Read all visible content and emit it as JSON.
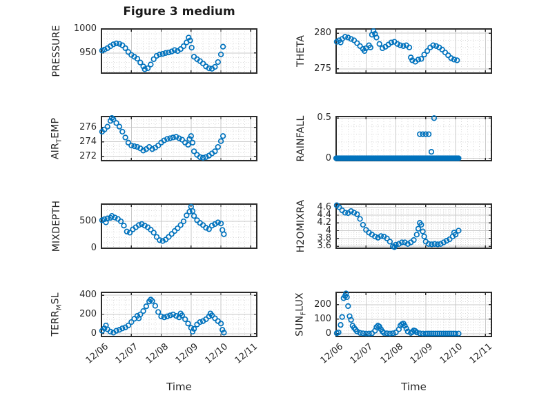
{
  "figure": {
    "title": "Figure 3 medium",
    "xlabel": "Time",
    "background": "#ffffff",
    "marker_color": "#0072BD",
    "axes_color": "#2b2b2b",
    "grid_major_color": "#c9c9c9",
    "grid_minor_color": "#d8d8d8",
    "text_color": "#262626",
    "x_ticks": {
      "values": [
        0,
        1,
        2,
        3,
        4,
        5
      ],
      "labels": [
        "12/06",
        "12/07",
        "12/08",
        "12/09",
        "12/10",
        "12/11"
      ]
    },
    "xlim_days": [
      0,
      5.2
    ],
    "x_minor_step_days": 0.2,
    "marker_render_step_days": 0.07
  },
  "chart_data": [
    {
      "name": "PRESSURE",
      "type": "scatter",
      "ylabel": {
        "pre": "PRESSURE",
        "sub": "",
        "post": ""
      },
      "ylabel_text": "PRESSURE",
      "yticks": [
        950,
        1000
      ],
      "ytick_labels": [
        "950",
        "1000"
      ],
      "ylim": [
        908,
        1000
      ],
      "y_minor_step": 10,
      "x": [
        0.02,
        0.1,
        0.2,
        0.3,
        0.4,
        0.5,
        0.6,
        0.7,
        0.8,
        0.9,
        1.0,
        1.1,
        1.2,
        1.3,
        1.4,
        1.45,
        1.55,
        1.65,
        1.75,
        1.85,
        1.95,
        2.05,
        2.15,
        2.25,
        2.35,
        2.45,
        2.55,
        2.65,
        2.75,
        2.85,
        2.92,
        2.97,
        3.02,
        3.1,
        3.2,
        3.3,
        3.4,
        3.5,
        3.6,
        3.7,
        3.8,
        3.9,
        4.0,
        4.07
      ],
      "y": [
        955,
        957,
        960,
        964,
        968,
        970,
        969,
        966,
        960,
        952,
        946,
        942,
        938,
        930,
        922,
        916,
        918,
        926,
        937,
        944,
        947,
        948,
        950,
        951,
        953,
        956,
        954,
        958,
        964,
        972,
        982,
        976,
        961,
        942,
        937,
        933,
        928,
        922,
        918,
        917,
        921,
        931,
        947,
        963
      ]
    },
    {
      "name": "THETA",
      "type": "scatter",
      "ylabel": {
        "pre": "THETA",
        "sub": "",
        "post": ""
      },
      "ylabel_text": "THETA",
      "yticks": [
        275,
        280
      ],
      "ytick_labels": [
        "275",
        "280"
      ],
      "ylim": [
        274.4,
        280.6
      ],
      "y_minor_step": 1,
      "x": [
        0.02,
        0.1,
        0.15,
        0.2,
        0.3,
        0.4,
        0.5,
        0.6,
        0.7,
        0.8,
        0.9,
        0.95,
        1.0,
        1.1,
        1.15,
        1.2,
        1.25,
        1.3,
        1.35,
        1.45,
        1.55,
        1.65,
        1.75,
        1.85,
        1.95,
        2.05,
        2.15,
        2.25,
        2.35,
        2.45,
        2.5,
        2.55,
        2.65,
        2.75,
        2.85,
        2.95,
        3.05,
        3.15,
        3.25,
        3.35,
        3.45,
        3.55,
        3.65,
        3.75,
        3.85,
        3.95,
        4.05
      ],
      "y": [
        278.8,
        279.0,
        278.7,
        279.2,
        279.5,
        279.4,
        279.2,
        279.0,
        278.6,
        278.2,
        277.8,
        277.5,
        277.9,
        278.3,
        278.0,
        279.8,
        280.3,
        279.9,
        279.4,
        278.5,
        277.9,
        278.1,
        278.4,
        278.7,
        278.8,
        278.5,
        278.3,
        278.2,
        278.3,
        278.0,
        276.6,
        276.2,
        276.0,
        276.3,
        276.4,
        277.0,
        277.5,
        278.0,
        278.3,
        278.2,
        278.0,
        277.7,
        277.3,
        276.9,
        276.5,
        276.3,
        276.2
      ]
    },
    {
      "name": "AIR_TEMP",
      "type": "scatter",
      "ylabel": {
        "pre": "AIR",
        "sub": "T",
        "post": "EMP"
      },
      "ylabel_text": "AIR_TEMP",
      "yticks": [
        272,
        274,
        276
      ],
      "ytick_labels": [
        "272",
        "274",
        "276"
      ],
      "ylim": [
        271.4,
        277.5
      ],
      "y_minor_step": 0.5,
      "x": [
        0.02,
        0.1,
        0.2,
        0.3,
        0.35,
        0.4,
        0.5,
        0.6,
        0.7,
        0.8,
        0.9,
        1.0,
        1.1,
        1.2,
        1.3,
        1.4,
        1.5,
        1.6,
        1.7,
        1.8,
        1.9,
        2.0,
        2.1,
        2.2,
        2.3,
        2.4,
        2.5,
        2.6,
        2.7,
        2.8,
        2.9,
        2.95,
        3.0,
        3.05,
        3.1,
        3.2,
        3.3,
        3.4,
        3.5,
        3.6,
        3.7,
        3.8,
        3.9,
        4.0,
        4.07
      ],
      "y": [
        275.4,
        275.7,
        276.1,
        276.9,
        277.3,
        277.1,
        276.6,
        276.1,
        275.4,
        274.6,
        273.9,
        273.5,
        273.4,
        273.3,
        273.1,
        272.8,
        273.0,
        273.3,
        273.0,
        273.2,
        273.5,
        273.9,
        274.2,
        274.4,
        274.5,
        274.6,
        274.7,
        274.5,
        274.3,
        273.9,
        273.6,
        274.4,
        274.8,
        273.9,
        272.7,
        272.2,
        271.9,
        271.8,
        271.9,
        272.1,
        272.4,
        272.7,
        273.3,
        274.1,
        274.8
      ]
    },
    {
      "name": "RAINFALL",
      "type": "scatter",
      "ylabel": {
        "pre": "RAINFALL",
        "sub": "",
        "post": ""
      },
      "ylabel_text": "RAINFALL",
      "yticks": [
        0,
        0.5
      ],
      "ytick_labels": [
        "0",
        "0.5"
      ],
      "ylim": [
        -0.03,
        0.52
      ],
      "y_minor_step": 0.1,
      "render_step_days": 0.03,
      "x": [
        0,
        0.1,
        0.2,
        0.3,
        0.4,
        0.5,
        0.6,
        0.7,
        0.8,
        0.9,
        1.0,
        1.1,
        1.2,
        1.3,
        1.4,
        1.5,
        1.6,
        1.7,
        1.8,
        1.9,
        2.0,
        2.1,
        2.2,
        2.3,
        2.4,
        2.5,
        2.6,
        2.7,
        2.8,
        2.9,
        3.0,
        3.1,
        3.2,
        3.3,
        3.4,
        3.5,
        3.6,
        3.7,
        3.8,
        3.9,
        4.0,
        4.1
      ],
      "y": [
        0,
        0,
        0,
        0,
        0,
        0,
        0,
        0,
        0,
        0,
        0,
        0,
        0,
        0,
        0,
        0,
        0,
        0,
        0,
        0,
        0,
        0,
        0,
        0,
        0,
        0,
        0,
        0,
        0,
        0,
        0,
        0,
        0,
        0,
        0,
        0,
        0,
        0,
        0,
        0,
        0,
        0
      ],
      "events": {
        "x": [
          2.8,
          2.9,
          3.0,
          3.1,
          3.19,
          3.28
        ],
        "y": [
          0.3,
          0.3,
          0.3,
          0.3,
          0.08,
          0.5
        ]
      }
    },
    {
      "name": "MIXDEPTH",
      "type": "scatter",
      "ylabel": {
        "pre": "MIXDEPTH",
        "sub": "",
        "post": ""
      },
      "ylabel_text": "MIXDEPTH",
      "yticks": [
        0,
        500
      ],
      "ytick_labels": [
        "0",
        "500"
      ],
      "ylim": [
        0,
        820
      ],
      "y_minor_step": 100,
      "x": [
        0.02,
        0.1,
        0.15,
        0.2,
        0.3,
        0.35,
        0.45,
        0.55,
        0.65,
        0.75,
        0.85,
        0.95,
        1.05,
        1.15,
        1.25,
        1.35,
        1.45,
        1.55,
        1.65,
        1.75,
        1.85,
        1.95,
        2.05,
        2.15,
        2.25,
        2.35,
        2.45,
        2.55,
        2.65,
        2.75,
        2.85,
        2.95,
        3.0,
        3.05,
        3.1,
        3.2,
        3.3,
        3.4,
        3.5,
        3.6,
        3.7,
        3.8,
        3.9,
        4.0,
        4.05,
        4.1
      ],
      "y": [
        520,
        540,
        480,
        555,
        565,
        600,
        570,
        545,
        500,
        420,
        310,
        290,
        350,
        390,
        430,
        450,
        420,
        390,
        345,
        290,
        210,
        150,
        135,
        160,
        210,
        265,
        320,
        370,
        430,
        500,
        610,
        680,
        770,
        690,
        600,
        520,
        470,
        430,
        380,
        355,
        420,
        450,
        480,
        460,
        340,
        260
      ]
    },
    {
      "name": "H2OMIXRA",
      "type": "scatter",
      "ylabel": {
        "pre": "H2OMIXRA",
        "sub": "",
        "post": ""
      },
      "ylabel_text": "H2OMIXRA",
      "yticks": [
        3.6,
        3.8,
        4,
        4.2,
        4.4,
        4.6
      ],
      "ytick_labels": [
        "3.6",
        "3.8",
        "4",
        "4.2",
        "4.4",
        "4.6"
      ],
      "ylim": [
        3.55,
        4.68
      ],
      "y_minor_step": 0.05,
      "x": [
        0.02,
        0.1,
        0.2,
        0.3,
        0.4,
        0.5,
        0.6,
        0.7,
        0.8,
        0.9,
        1.0,
        1.1,
        1.2,
        1.3,
        1.4,
        1.5,
        1.6,
        1.7,
        1.8,
        1.9,
        1.95,
        2.0,
        2.1,
        2.2,
        2.3,
        2.4,
        2.5,
        2.6,
        2.7,
        2.75,
        2.8,
        2.85,
        2.9,
        2.95,
        3.0,
        3.1,
        3.2,
        3.3,
        3.4,
        3.5,
        3.6,
        3.7,
        3.8,
        3.9,
        3.95,
        4.0,
        4.1
      ],
      "y": [
        4.65,
        4.6,
        4.52,
        4.46,
        4.45,
        4.5,
        4.46,
        4.42,
        4.3,
        4.15,
        4.02,
        3.95,
        3.9,
        3.85,
        3.82,
        3.86,
        3.85,
        3.8,
        3.72,
        3.6,
        3.58,
        3.64,
        3.66,
        3.7,
        3.7,
        3.66,
        3.7,
        3.76,
        3.9,
        4.05,
        4.2,
        4.15,
        3.98,
        3.85,
        3.72,
        3.66,
        3.65,
        3.66,
        3.65,
        3.66,
        3.7,
        3.74,
        3.78,
        3.85,
        3.95,
        3.9,
        4.0
      ]
    },
    {
      "name": "TERR_MSL",
      "type": "scatter",
      "ylabel": {
        "pre": "TERR",
        "sub": "M",
        "post": "SL"
      },
      "ylabel_text": "TERR_MSL",
      "yticks": [
        0,
        200,
        400
      ],
      "ytick_labels": [
        "0",
        "200",
        "400"
      ],
      "ylim": [
        -30,
        430
      ],
      "y_minor_step": 50,
      "x": [
        0.02,
        0.1,
        0.15,
        0.2,
        0.3,
        0.4,
        0.5,
        0.6,
        0.7,
        0.8,
        0.9,
        1.0,
        1.1,
        1.2,
        1.25,
        1.3,
        1.4,
        1.5,
        1.6,
        1.65,
        1.7,
        1.8,
        1.9,
        2.0,
        2.1,
        2.2,
        2.3,
        2.4,
        2.5,
        2.6,
        2.65,
        2.7,
        2.8,
        2.9,
        3.0,
        3.05,
        3.1,
        3.2,
        3.3,
        3.4,
        3.5,
        3.6,
        3.65,
        3.7,
        3.8,
        3.9,
        4.0,
        4.05,
        4.1
      ],
      "y": [
        30,
        55,
        85,
        45,
        20,
        10,
        30,
        40,
        55,
        65,
        85,
        120,
        155,
        185,
        160,
        200,
        235,
        285,
        335,
        355,
        340,
        290,
        225,
        180,
        170,
        180,
        190,
        200,
        185,
        170,
        210,
        190,
        150,
        105,
        60,
        20,
        50,
        95,
        120,
        130,
        150,
        180,
        210,
        190,
        160,
        130,
        105,
        40,
        10
      ]
    },
    {
      "name": "SUN_FLUX",
      "type": "scatter",
      "ylabel": {
        "pre": "SUN",
        "sub": "F",
        "post": "LUX"
      },
      "ylabel_text": "SUN_FLUX",
      "yticks": [
        0,
        100,
        200
      ],
      "ytick_labels": [
        "0",
        "100",
        "200"
      ],
      "ylim": [
        -20,
        285
      ],
      "y_minor_step": 20,
      "x": [
        0.02,
        0.08,
        0.15,
        0.2,
        0.25,
        0.3,
        0.33,
        0.36,
        0.4,
        0.45,
        0.5,
        0.55,
        0.6,
        0.65,
        0.7,
        0.8,
        0.9,
        1.0,
        1.1,
        1.2,
        1.3,
        1.35,
        1.4,
        1.45,
        1.5,
        1.55,
        1.6,
        1.7,
        1.8,
        1.9,
        2.0,
        2.1,
        2.15,
        2.2,
        2.25,
        2.3,
        2.35,
        2.4,
        2.5,
        2.55,
        2.6,
        2.65,
        2.7,
        2.8,
        2.9,
        3.0,
        3.2,
        3.4,
        3.6,
        3.8,
        4.0,
        4.1
      ],
      "y": [
        3,
        8,
        60,
        115,
        245,
        260,
        278,
        252,
        190,
        120,
        95,
        55,
        40,
        28,
        15,
        5,
        2,
        0,
        0,
        2,
        20,
        45,
        55,
        48,
        30,
        15,
        5,
        2,
        0,
        2,
        8,
        30,
        55,
        65,
        70,
        55,
        35,
        15,
        5,
        12,
        22,
        18,
        8,
        2,
        0,
        0,
        0,
        0,
        0,
        0,
        0,
        0
      ]
    }
  ]
}
